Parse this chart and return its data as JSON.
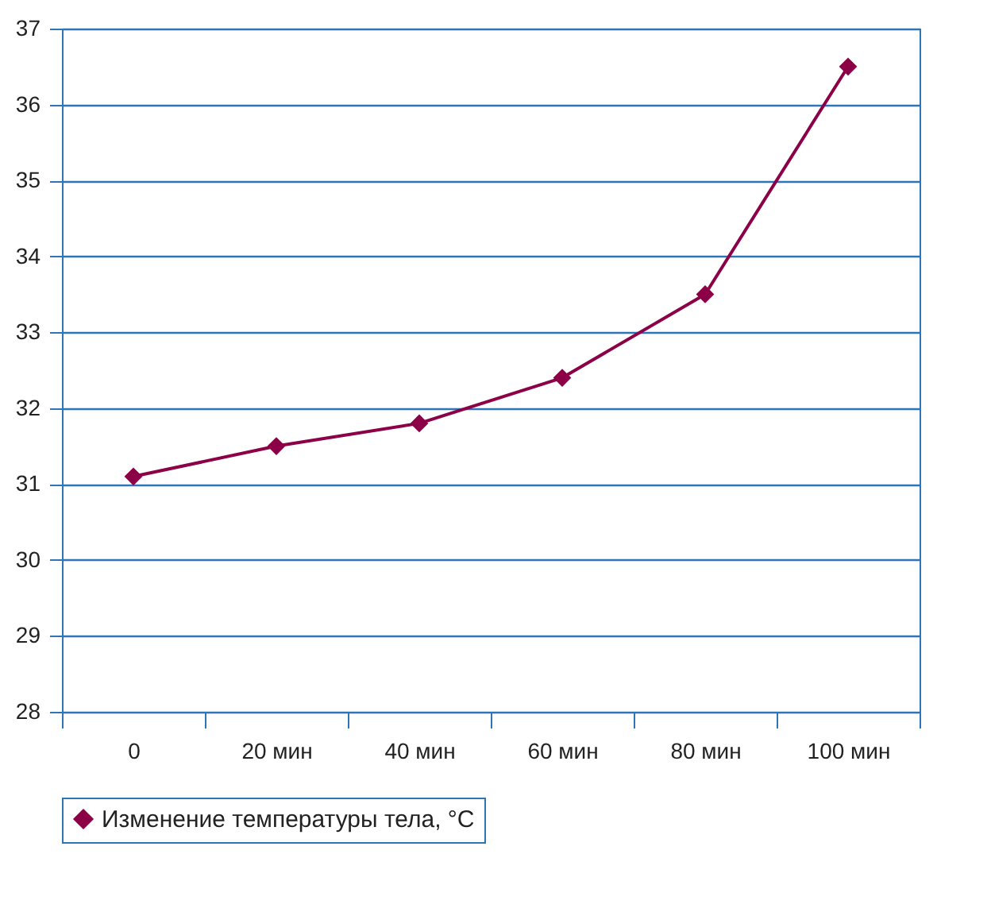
{
  "chart_data": {
    "type": "line",
    "categories": [
      "0",
      "20 мин",
      "40 мин",
      "60 мин",
      "80 мин",
      "100 мин"
    ],
    "series": [
      {
        "name": "Изменение температуры тела, °C",
        "color": "#8b0046",
        "values": [
          31.1,
          31.5,
          31.8,
          32.4,
          33.5,
          36.5
        ]
      }
    ],
    "ylim": [
      28,
      37
    ],
    "yticks": [
      28,
      29,
      30,
      31,
      32,
      33,
      34,
      35,
      36,
      37
    ],
    "grid": "y",
    "legend": "bottom",
    "marker": "diamond",
    "line_style": "solid"
  }
}
